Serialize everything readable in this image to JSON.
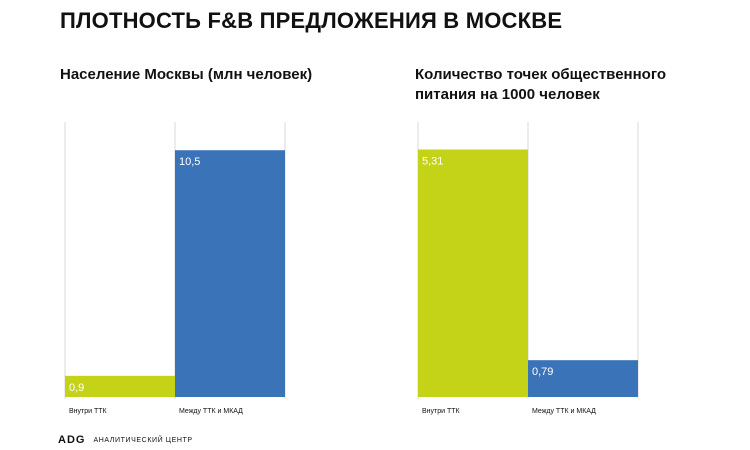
{
  "page": {
    "title": "ПЛОТНОСТЬ F&B ПРЕДЛОЖЕНИЯ В МОСКВЕ"
  },
  "footer": {
    "logo_text": "ADG",
    "org": "АНАЛИТИЧЕСКИЙ ЦЕНТР"
  },
  "colors": {
    "green": "#c4d318",
    "blue": "#3b73b9",
    "grid": "#d8d8d8"
  },
  "chart_data": [
    {
      "type": "bar",
      "title": "Население Москвы (млн человек)",
      "categories": [
        "Внутри ТТК",
        "Между ТТК и МКАД"
      ],
      "values": [
        0.9,
        10.5
      ],
      "value_labels": [
        "0,9",
        "10,5"
      ],
      "colors": [
        "#c4d318",
        "#3b73b9"
      ],
      "ylim": [
        0,
        11.7
      ],
      "grid": true
    },
    {
      "type": "bar",
      "title": "Количество точек общественного питания на 1000 человек",
      "categories": [
        "Внутри ТТК",
        "Между ТТК и МКАД"
      ],
      "values": [
        5.31,
        0.79
      ],
      "value_labels": [
        "5,31",
        "0,79"
      ],
      "colors": [
        "#c4d318",
        "#3b73b9"
      ],
      "ylim": [
        0,
        5.9
      ],
      "grid": true
    }
  ]
}
